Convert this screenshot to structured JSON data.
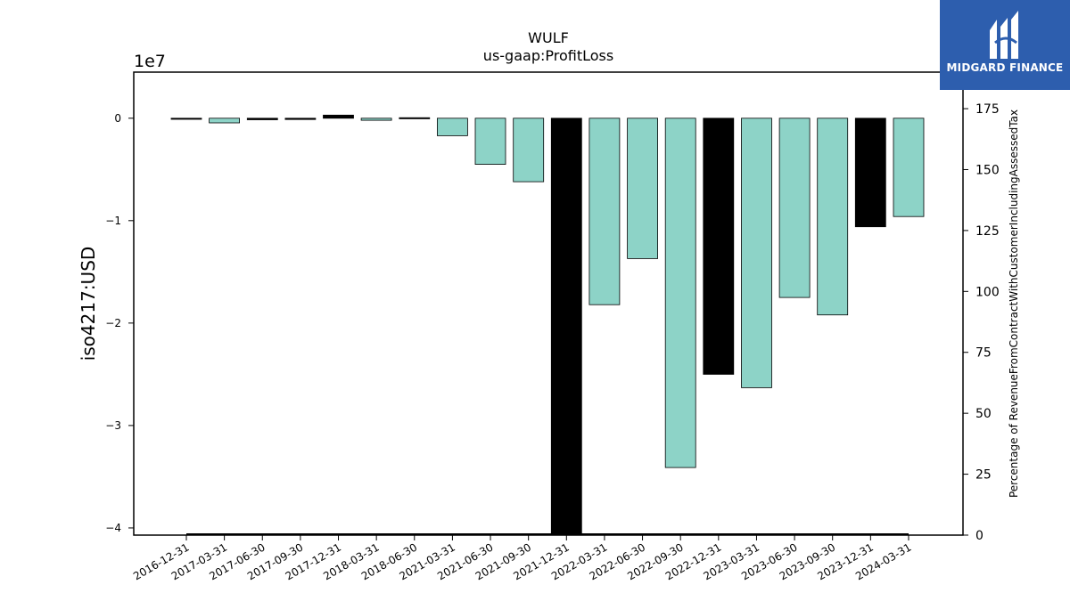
{
  "chart_data": {
    "type": "bar",
    "title": "WULF",
    "subtitle": "us-gaap:ProfitLoss",
    "ylabel": "iso4217:USD",
    "y_offset_text": "1e7",
    "y2label": "Percentage of RevenueFromContractWithCustomerIncludingAssessedTax",
    "ylim": [
      -40700000,
      4500000
    ],
    "y2lim": [
      0,
      190
    ],
    "y_ticks": [
      0,
      -10000000,
      -20000000,
      -30000000,
      -40000000
    ],
    "y_tick_labels": [
      "0",
      "−1",
      "−2",
      "−3",
      "−4"
    ],
    "y2_ticks": [
      0,
      25,
      50,
      75,
      100,
      125,
      150,
      175
    ],
    "categories": [
      "2016-12-31",
      "2017-03-31",
      "2017-06-30",
      "2017-09-30",
      "2017-12-31",
      "2018-03-31",
      "2018-06-30",
      "2021-03-31",
      "2021-06-30",
      "2021-09-30",
      "2021-12-31",
      "2022-03-31",
      "2022-06-30",
      "2022-09-30",
      "2022-12-31",
      "2023-03-31",
      "2023-06-30",
      "2023-09-30",
      "2023-12-31",
      "2024-03-31"
    ],
    "values": [
      -80000,
      -450000,
      -150000,
      -120000,
      300000,
      -200000,
      50000,
      -1700000,
      -4500000,
      -6200000,
      -40700000,
      -18200000,
      -13700000,
      -34100000,
      -25000000,
      -26300000,
      -17500000,
      -19200000,
      -10600000,
      -9600000
    ],
    "bar_colors": [
      "#000000",
      "#8dd3c7",
      "#000000",
      "#000000",
      "#000000",
      "#8dd3c7",
      "#000000",
      "#8dd3c7",
      "#8dd3c7",
      "#8dd3c7",
      "#000000",
      "#8dd3c7",
      "#8dd3c7",
      "#8dd3c7",
      "#000000",
      "#8dd3c7",
      "#8dd3c7",
      "#8dd3c7",
      "#000000",
      "#8dd3c7"
    ],
    "secondary_values": [
      0,
      0,
      0,
      0,
      0,
      0,
      0,
      0,
      0,
      0,
      0,
      0,
      0,
      0,
      0,
      0,
      0,
      0,
      0,
      0
    ]
  },
  "logo": {
    "text": "MIDGARD FINANCE",
    "bg_color": "#2d5eae"
  }
}
